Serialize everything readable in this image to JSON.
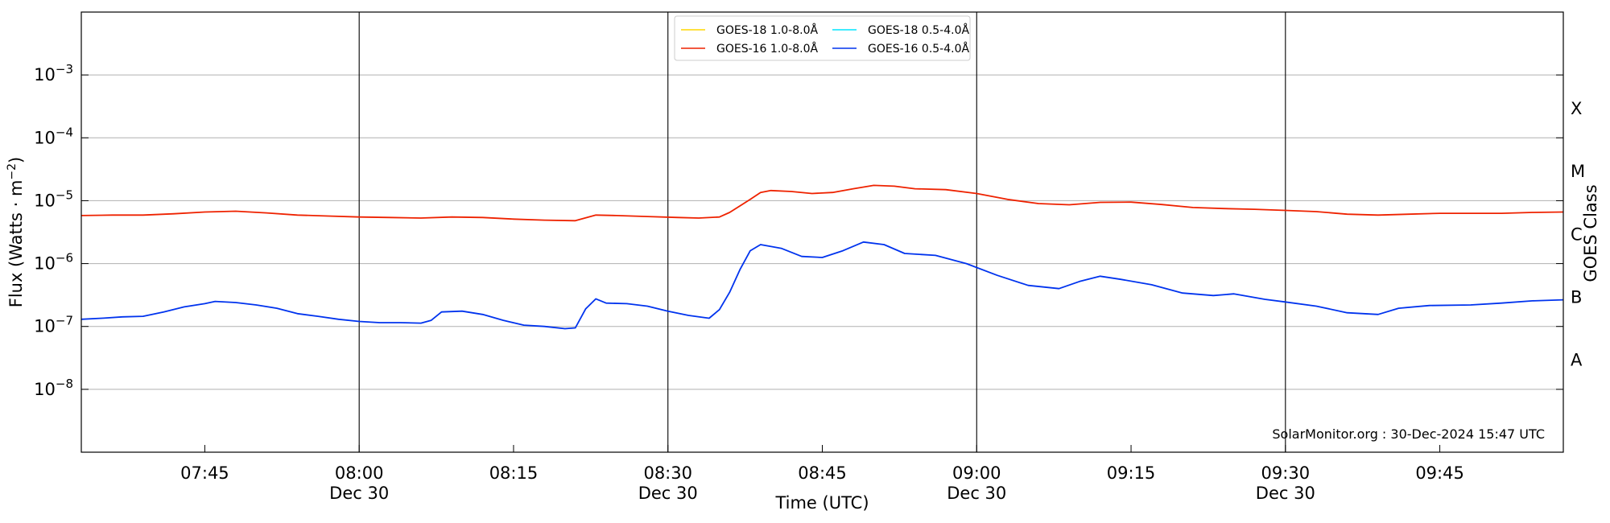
{
  "chart_data": {
    "type": "line",
    "ylabel": "Flux (Watts · m",
    "ylabel_sup": "−2",
    "ylabel_close": ")",
    "xlabel": "Time (UTC)",
    "right_label": "GOES Class",
    "credit": "SolarMonitor.org : 30-Dec-2024 15:47 UTC",
    "y_scale": "log",
    "ylim": [
      1e-09,
      0.01
    ],
    "xlim": [
      "07:33",
      "09:57"
    ],
    "grid": "horizontal",
    "legend_position": "top-center",
    "y_ticks": [
      {
        "value": 1e-08,
        "base": "10",
        "exp": "−8"
      },
      {
        "value": 1e-07,
        "base": "10",
        "exp": "−7"
      },
      {
        "value": 1e-06,
        "base": "10",
        "exp": "−6"
      },
      {
        "value": 1e-05,
        "base": "10",
        "exp": "−5"
      },
      {
        "value": 0.0001,
        "base": "10",
        "exp": "−4"
      },
      {
        "value": 0.001,
        "base": "10",
        "exp": "−3"
      }
    ],
    "x_ticks": [
      {
        "time": "07:45",
        "label": "07:45",
        "sub": ""
      },
      {
        "time": "08:00",
        "label": "08:00",
        "sub": "Dec 30"
      },
      {
        "time": "08:15",
        "label": "08:15",
        "sub": ""
      },
      {
        "time": "08:30",
        "label": "08:30",
        "sub": "Dec 30"
      },
      {
        "time": "08:45",
        "label": "08:45",
        "sub": ""
      },
      {
        "time": "09:00",
        "label": "09:00",
        "sub": "Dec 30"
      },
      {
        "time": "09:15",
        "label": "09:15",
        "sub": ""
      },
      {
        "time": "09:30",
        "label": "09:30",
        "sub": "Dec 30"
      },
      {
        "time": "09:45",
        "label": "09:45",
        "sub": ""
      }
    ],
    "vertical_lines": [
      "08:00",
      "08:30",
      "09:00",
      "09:30"
    ],
    "goes_classes": [
      {
        "label": "X",
        "value": 0.0003
      },
      {
        "label": "M",
        "value": 3e-05
      },
      {
        "label": "C",
        "value": 3e-06
      },
      {
        "label": "B",
        "value": 3e-07
      },
      {
        "label": "A",
        "value": 3e-08
      }
    ],
    "legend": [
      {
        "name": "GOES-18 1.0-8.0Å",
        "color": "#ffd700"
      },
      {
        "name": "GOES-18 0.5-4.0Å",
        "color": "#00e5ff"
      },
      {
        "name": "GOES-16 1.0-8.0Å",
        "color": "#ee2200"
      },
      {
        "name": "GOES-16 0.5-4.0Å",
        "color": "#0033ee"
      }
    ],
    "series": [
      {
        "name": "GOES-16 1.0-8.0Å",
        "color": "#ee2200",
        "points": [
          [
            "07:33",
            5.8e-06
          ],
          [
            "07:36",
            5.9e-06
          ],
          [
            "07:39",
            5.9e-06
          ],
          [
            "07:42",
            6.2e-06
          ],
          [
            "07:45",
            6.6e-06
          ],
          [
            "07:48",
            6.8e-06
          ],
          [
            "07:51",
            6.4e-06
          ],
          [
            "07:54",
            5.9e-06
          ],
          [
            "07:57",
            5.7e-06
          ],
          [
            "08:00",
            5.5e-06
          ],
          [
            "08:03",
            5.4e-06
          ],
          [
            "08:06",
            5.3e-06
          ],
          [
            "08:09",
            5.5e-06
          ],
          [
            "08:12",
            5.4e-06
          ],
          [
            "08:15",
            5.1e-06
          ],
          [
            "08:18",
            4.9e-06
          ],
          [
            "08:21",
            4.8e-06
          ],
          [
            "08:23",
            5.9e-06
          ],
          [
            "08:25",
            5.8e-06
          ],
          [
            "08:28",
            5.6e-06
          ],
          [
            "08:31",
            5.4e-06
          ],
          [
            "08:33",
            5.3e-06
          ],
          [
            "08:35",
            5.5e-06
          ],
          [
            "08:36",
            6.5e-06
          ],
          [
            "08:38",
            1.05e-05
          ],
          [
            "08:39",
            1.35e-05
          ],
          [
            "08:40",
            1.45e-05
          ],
          [
            "08:42",
            1.4e-05
          ],
          [
            "08:44",
            1.3e-05
          ],
          [
            "08:46",
            1.35e-05
          ],
          [
            "08:48",
            1.55e-05
          ],
          [
            "08:50",
            1.75e-05
          ],
          [
            "08:52",
            1.7e-05
          ],
          [
            "08:54",
            1.55e-05
          ],
          [
            "08:57",
            1.5e-05
          ],
          [
            "09:00",
            1.3e-05
          ],
          [
            "09:03",
            1.05e-05
          ],
          [
            "09:06",
            9e-06
          ],
          [
            "09:09",
            8.6e-06
          ],
          [
            "09:12",
            9.4e-06
          ],
          [
            "09:15",
            9.5e-06
          ],
          [
            "09:18",
            8.7e-06
          ],
          [
            "09:21",
            7.8e-06
          ],
          [
            "09:24",
            7.5e-06
          ],
          [
            "09:27",
            7.3e-06
          ],
          [
            "09:30",
            7e-06
          ],
          [
            "09:33",
            6.7e-06
          ],
          [
            "09:36",
            6.1e-06
          ],
          [
            "09:39",
            5.9e-06
          ],
          [
            "09:42",
            6.1e-06
          ],
          [
            "09:45",
            6.3e-06
          ],
          [
            "09:48",
            6.3e-06
          ],
          [
            "09:51",
            6.3e-06
          ],
          [
            "09:54",
            6.5e-06
          ],
          [
            "09:57",
            6.6e-06
          ]
        ]
      },
      {
        "name": "GOES-16 0.5-4.0Å",
        "color": "#0033ee",
        "points": [
          [
            "07:33",
            1.3e-07
          ],
          [
            "07:35",
            1.35e-07
          ],
          [
            "07:37",
            1.42e-07
          ],
          [
            "07:39",
            1.45e-07
          ],
          [
            "07:41",
            1.7e-07
          ],
          [
            "07:43",
            2.05e-07
          ],
          [
            "07:45",
            2.3e-07
          ],
          [
            "07:46",
            2.5e-07
          ],
          [
            "07:48",
            2.4e-07
          ],
          [
            "07:50",
            2.2e-07
          ],
          [
            "07:52",
            1.95e-07
          ],
          [
            "07:54",
            1.6e-07
          ],
          [
            "07:56",
            1.45e-07
          ],
          [
            "07:58",
            1.3e-07
          ],
          [
            "08:00",
            1.2e-07
          ],
          [
            "08:02",
            1.15e-07
          ],
          [
            "08:04",
            1.15e-07
          ],
          [
            "08:06",
            1.13e-07
          ],
          [
            "08:07",
            1.25e-07
          ],
          [
            "08:08",
            1.7e-07
          ],
          [
            "08:10",
            1.75e-07
          ],
          [
            "08:12",
            1.55e-07
          ],
          [
            "08:14",
            1.25e-07
          ],
          [
            "08:16",
            1.05e-07
          ],
          [
            "08:18",
            1e-07
          ],
          [
            "08:20",
            9.2e-08
          ],
          [
            "08:21",
            9.5e-08
          ],
          [
            "08:22",
            1.9e-07
          ],
          [
            "08:23",
            2.75e-07
          ],
          [
            "08:24",
            2.35e-07
          ],
          [
            "08:26",
            2.3e-07
          ],
          [
            "08:28",
            2.1e-07
          ],
          [
            "08:30",
            1.75e-07
          ],
          [
            "08:32",
            1.5e-07
          ],
          [
            "08:34",
            1.35e-07
          ],
          [
            "08:35",
            1.85e-07
          ],
          [
            "08:36",
            3.5e-07
          ],
          [
            "08:37",
            8e-07
          ],
          [
            "08:38",
            1.6e-06
          ],
          [
            "08:39",
            2e-06
          ],
          [
            "08:41",
            1.75e-06
          ],
          [
            "08:43",
            1.3e-06
          ],
          [
            "08:45",
            1.25e-06
          ],
          [
            "08:47",
            1.6e-06
          ],
          [
            "08:49",
            2.2e-06
          ],
          [
            "08:51",
            2e-06
          ],
          [
            "08:53",
            1.45e-06
          ],
          [
            "08:56",
            1.35e-06
          ],
          [
            "08:59",
            1e-06
          ],
          [
            "09:02",
            6.5e-07
          ],
          [
            "09:05",
            4.5e-07
          ],
          [
            "09:08",
            4e-07
          ],
          [
            "09:10",
            5.2e-07
          ],
          [
            "09:12",
            6.3e-07
          ],
          [
            "09:14",
            5.6e-07
          ],
          [
            "09:17",
            4.6e-07
          ],
          [
            "09:20",
            3.4e-07
          ],
          [
            "09:23",
            3.1e-07
          ],
          [
            "09:25",
            3.3e-07
          ],
          [
            "09:28",
            2.7e-07
          ],
          [
            "09:30",
            2.45e-07
          ],
          [
            "09:33",
            2.1e-07
          ],
          [
            "09:36",
            1.65e-07
          ],
          [
            "09:39",
            1.55e-07
          ],
          [
            "09:41",
            1.95e-07
          ],
          [
            "09:44",
            2.15e-07
          ],
          [
            "09:48",
            2.2e-07
          ],
          [
            "09:51",
            2.35e-07
          ],
          [
            "09:54",
            2.55e-07
          ],
          [
            "09:57",
            2.65e-07
          ]
        ]
      }
    ]
  }
}
